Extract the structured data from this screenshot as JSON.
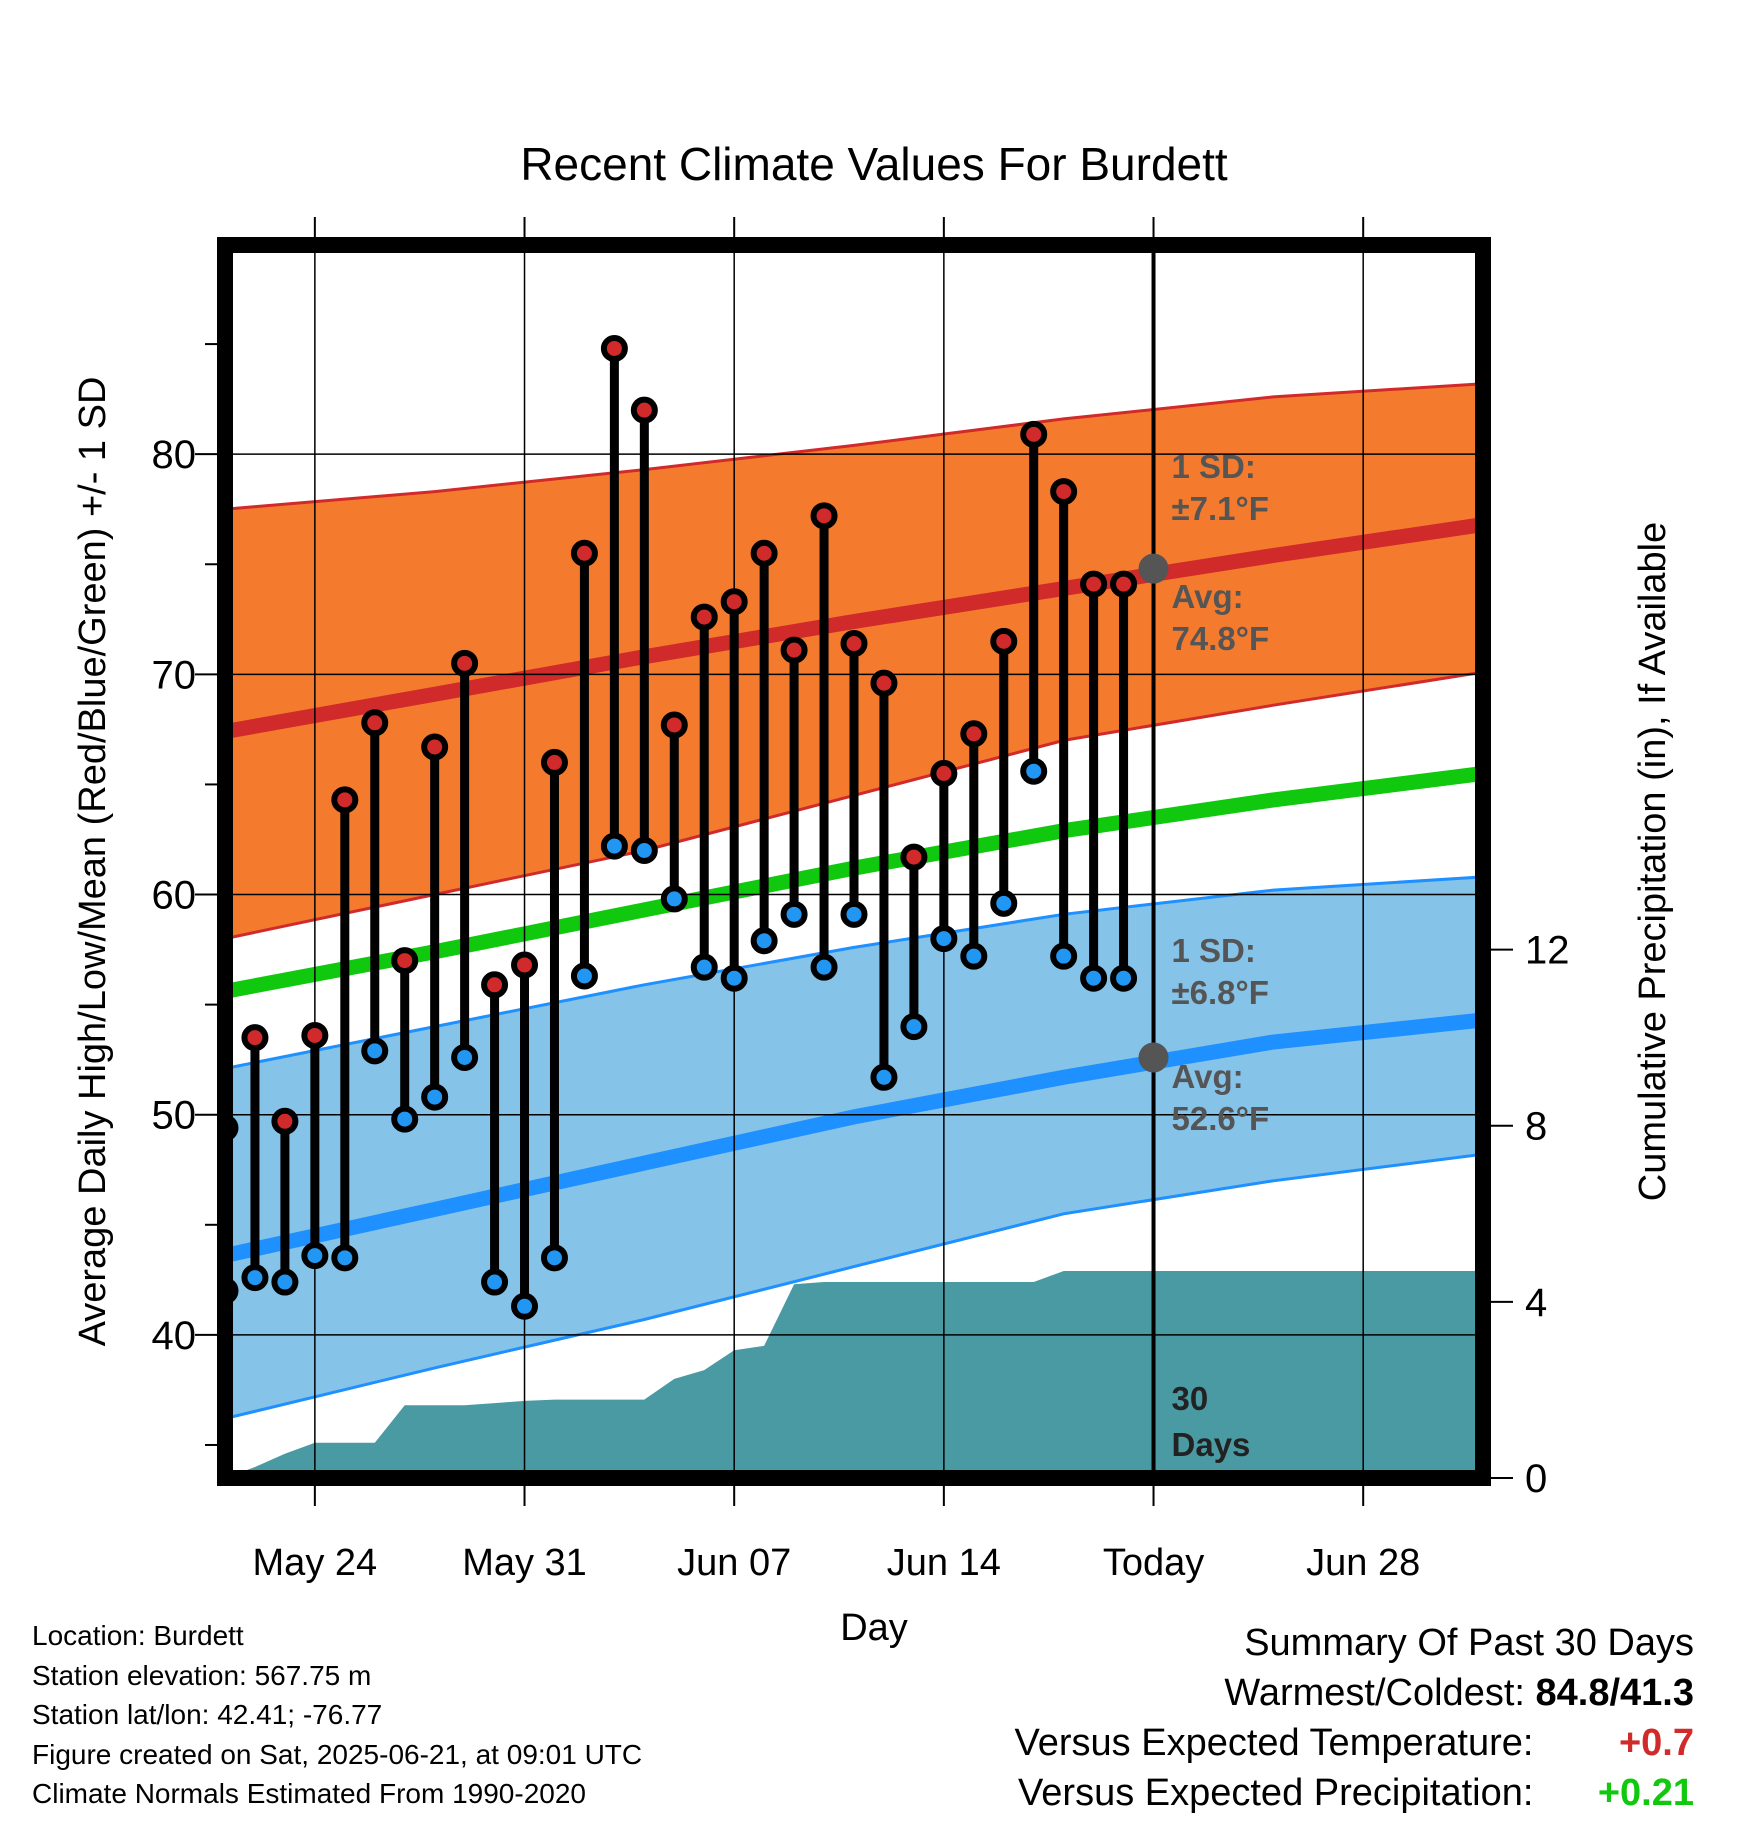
{
  "chart_data": {
    "type": "line",
    "title": "Recent Climate Values For Burdett",
    "xlabel": "Day",
    "ylabel": "Average Daily High/Low/Mean (Red/Blue/Green) +/- 1 SD",
    "y2label": "Cumulative Precipitation (in), If Available",
    "x_range": [
      "2025-05-21",
      "2025-07-02"
    ],
    "ylim": [
      33.5,
      89.5
    ],
    "y2lim": [
      0,
      28
    ],
    "y_ticks": [
      40,
      50,
      60,
      70,
      80
    ],
    "y2_ticks": [
      0,
      4,
      8,
      12
    ],
    "x_ticks": [
      {
        "date": "2025-05-24",
        "label": "May 24"
      },
      {
        "date": "2025-05-31",
        "label": "May 31"
      },
      {
        "date": "2025-06-07",
        "label": "Jun 07"
      },
      {
        "date": "2025-06-14",
        "label": "Jun 14"
      },
      {
        "date": "2025-06-21",
        "label": "Today"
      },
      {
        "date": "2025-06-28",
        "label": "Jun 28"
      }
    ],
    "grid": true,
    "today": "2025-06-21",
    "daily": {
      "dates": [
        "2025-05-21",
        "2025-05-22",
        "2025-05-23",
        "2025-05-24",
        "2025-05-25",
        "2025-05-26",
        "2025-05-27",
        "2025-05-28",
        "2025-05-29",
        "2025-05-30",
        "2025-05-31",
        "2025-06-01",
        "2025-06-02",
        "2025-06-03",
        "2025-06-04",
        "2025-06-05",
        "2025-06-06",
        "2025-06-07",
        "2025-06-08",
        "2025-06-09",
        "2025-06-10",
        "2025-06-11",
        "2025-06-12",
        "2025-06-13",
        "2025-06-14",
        "2025-06-15",
        "2025-06-16",
        "2025-06-17",
        "2025-06-18",
        "2025-06-19",
        "2025-06-20"
      ],
      "highs": [
        49.4,
        53.5,
        49.7,
        53.6,
        64.3,
        67.8,
        57.0,
        66.7,
        70.5,
        55.9,
        56.8,
        66.0,
        75.5,
        84.8,
        82.0,
        67.7,
        72.6,
        73.3,
        75.5,
        71.1,
        77.2,
        71.4,
        69.6,
        61.7,
        65.5,
        67.3,
        71.5,
        80.9,
        78.3,
        74.1,
        74.1
      ],
      "lows": [
        42.0,
        42.6,
        42.4,
        43.6,
        43.5,
        52.9,
        49.8,
        50.8,
        52.6,
        42.4,
        41.3,
        43.5,
        56.3,
        62.2,
        62.0,
        59.8,
        56.7,
        56.2,
        57.9,
        59.1,
        56.7,
        59.1,
        51.7,
        54.0,
        58.0,
        57.2,
        59.6,
        65.6,
        57.2,
        56.2,
        56.2
      ]
    },
    "normals": {
      "dates": [
        "2025-05-21",
        "2025-05-28",
        "2025-06-04",
        "2025-06-11",
        "2025-06-18",
        "2025-06-25",
        "2025-07-02"
      ],
      "high_avg": [
        67.4,
        69.1,
        70.8,
        72.4,
        73.9,
        75.4,
        76.8
      ],
      "high_sd_upper": [
        77.5,
        78.3,
        79.3,
        80.4,
        81.6,
        82.6,
        83.2
      ],
      "high_sd_lower": [
        58.0,
        60.0,
        62.0,
        64.5,
        67.0,
        68.6,
        70.1
      ],
      "mean_avg": [
        55.6,
        57.4,
        59.3,
        61.2,
        62.9,
        64.3,
        65.5
      ],
      "low_avg": [
        43.6,
        45.7,
        47.8,
        49.9,
        51.7,
        53.3,
        54.3
      ],
      "low_sd_upper": [
        52.1,
        54.0,
        55.9,
        57.6,
        59.1,
        60.2,
        60.8
      ],
      "low_sd_lower": [
        36.2,
        38.5,
        40.7,
        43.1,
        45.5,
        47.0,
        48.2
      ]
    },
    "precip_cumulative": {
      "dates": [
        "2025-05-21",
        "2025-05-22",
        "2025-05-23",
        "2025-05-24",
        "2025-05-25",
        "2025-05-26",
        "2025-05-27",
        "2025-05-28",
        "2025-05-29",
        "2025-05-30",
        "2025-05-31",
        "2025-06-01",
        "2025-06-02",
        "2025-06-03",
        "2025-06-04",
        "2025-06-05",
        "2025-06-06",
        "2025-06-07",
        "2025-06-08",
        "2025-06-09",
        "2025-06-10",
        "2025-06-11",
        "2025-06-12",
        "2025-06-13",
        "2025-06-14",
        "2025-06-15",
        "2025-06-16",
        "2025-06-17",
        "2025-06-18",
        "2025-06-19",
        "2025-06-20",
        "2025-06-21",
        "2025-07-02"
      ],
      "values": [
        0.0,
        0.25,
        0.55,
        0.8,
        0.8,
        0.8,
        1.65,
        1.65,
        1.65,
        1.7,
        1.75,
        1.78,
        1.78,
        1.78,
        1.78,
        2.25,
        2.45,
        2.9,
        3.0,
        4.4,
        4.45,
        4.45,
        4.45,
        4.45,
        4.45,
        4.45,
        4.45,
        4.45,
        4.7,
        4.7,
        4.7,
        4.7,
        4.7
      ]
    },
    "annotations": {
      "high_sd": {
        "line1": "1 SD:",
        "line2": "±7.1°F"
      },
      "high_avg": {
        "line1": "Avg:",
        "line2": "74.8°F",
        "value": 74.8
      },
      "low_sd": {
        "line1": "1 SD:",
        "line2": "±6.8°F"
      },
      "low_avg": {
        "line1": "Avg:",
        "line2": "52.6°F",
        "value": 52.6
      },
      "days": {
        "line1": "30",
        "line2": "Days"
      }
    },
    "colors": {
      "high_band": "#f47b2e",
      "high_line": "#d12a2a",
      "mean_line": "#10c90e",
      "low_band": "#85c3e8",
      "low_line": "#1e90ff",
      "precip": "#4a9aa3",
      "high_dot": "#d12a2a",
      "low_dot": "#2196f3",
      "annotation": "#555555"
    }
  },
  "footer": {
    "location": "Location: Burdett",
    "elevation": "Station elevation: 567.75 m",
    "latlon": "Station lat/lon: 42.41; -76.77",
    "created": "Figure created on Sat, 2025-06-21, at 09:01 UTC",
    "normals": "Climate Normals Estimated From 1990-2020"
  },
  "summary": {
    "heading": "Summary Of Past 30 Days",
    "warmest_label": "Warmest/Coldest:",
    "warmest_value": "84.8/41.3",
    "temp_label": "Versus Expected Temperature:",
    "temp_value": "+0.7",
    "temp_color": "#d12a2a",
    "precip_label": "Versus Expected Precipitation:",
    "precip_value": "+0.21",
    "precip_color": "#10c90e"
  }
}
